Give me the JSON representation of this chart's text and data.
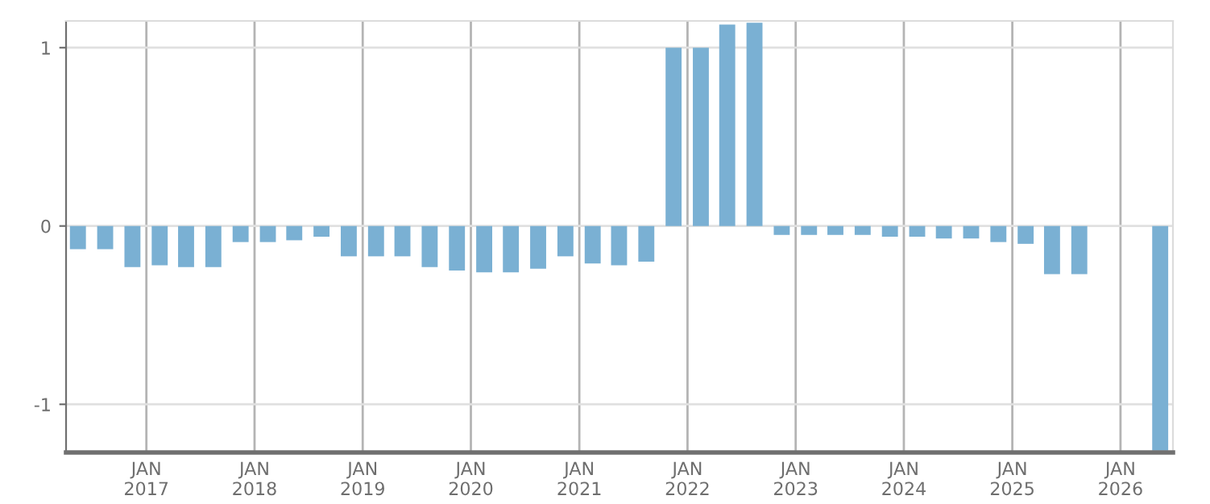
{
  "chart_data": {
    "type": "bar",
    "x": [
      "2016-05-15",
      "2016-08-15",
      "2016-11-15",
      "2017-02-15",
      "2017-05-15",
      "2017-08-15",
      "2017-11-15",
      "2018-02-15",
      "2018-05-15",
      "2018-08-15",
      "2018-11-15",
      "2019-02-15",
      "2019-05-15",
      "2019-08-15",
      "2019-11-15",
      "2020-02-15",
      "2020-05-15",
      "2020-08-15",
      "2020-11-15",
      "2021-02-15",
      "2021-05-15",
      "2021-08-15",
      "2021-11-15",
      "2022-02-15",
      "2022-05-15",
      "2022-08-15",
      "2022-11-15",
      "2023-02-15",
      "2023-05-15",
      "2023-08-15",
      "2023-11-15",
      "2024-02-15",
      "2024-05-15",
      "2024-08-15",
      "2024-11-15",
      "2025-02-15",
      "2025-05-15",
      "2025-08-15",
      "2025-11-15",
      "2026-02-15",
      "2026-05-15"
    ],
    "values": [
      -0.13,
      -0.13,
      -0.23,
      -0.22,
      -0.23,
      -0.23,
      -0.09,
      -0.09,
      -0.08,
      -0.06,
      -0.17,
      -0.17,
      -0.17,
      -0.23,
      -0.25,
      -0.26,
      -0.26,
      -0.24,
      -0.17,
      -0.21,
      -0.22,
      -0.2,
      1.0,
      1.0,
      1.13,
      1.14,
      -0.05,
      -0.05,
      -0.05,
      -0.05,
      -0.06,
      -0.06,
      -0.07,
      -0.07,
      -0.09,
      -0.1,
      -0.27,
      -0.27,
      null,
      null,
      -1.26
    ],
    "color": "#7ab0d3",
    "xlim": [
      "2016-04-05",
      "2026-06-27"
    ],
    "xticks": [
      {
        "value": "2017-01-01",
        "label": "JAN\n2017"
      },
      {
        "value": "2018-01-01",
        "label": "JAN\n2018"
      },
      {
        "value": "2019-01-01",
        "label": "JAN\n2019"
      },
      {
        "value": "2020-01-01",
        "label": "JAN\n2020"
      },
      {
        "value": "2021-01-01",
        "label": "JAN\n2021"
      },
      {
        "value": "2022-01-01",
        "label": "JAN\n2022"
      },
      {
        "value": "2023-01-01",
        "label": "JAN\n2023"
      },
      {
        "value": "2024-01-01",
        "label": "JAN\n2024"
      },
      {
        "value": "2025-01-01",
        "label": "JAN\n2025"
      },
      {
        "value": "2026-01-01",
        "label": "JAN\n2026"
      }
    ],
    "ylim": [
      -1.27,
      1.15
    ],
    "yticks": [
      -1,
      0,
      1
    ],
    "grid": true
  }
}
